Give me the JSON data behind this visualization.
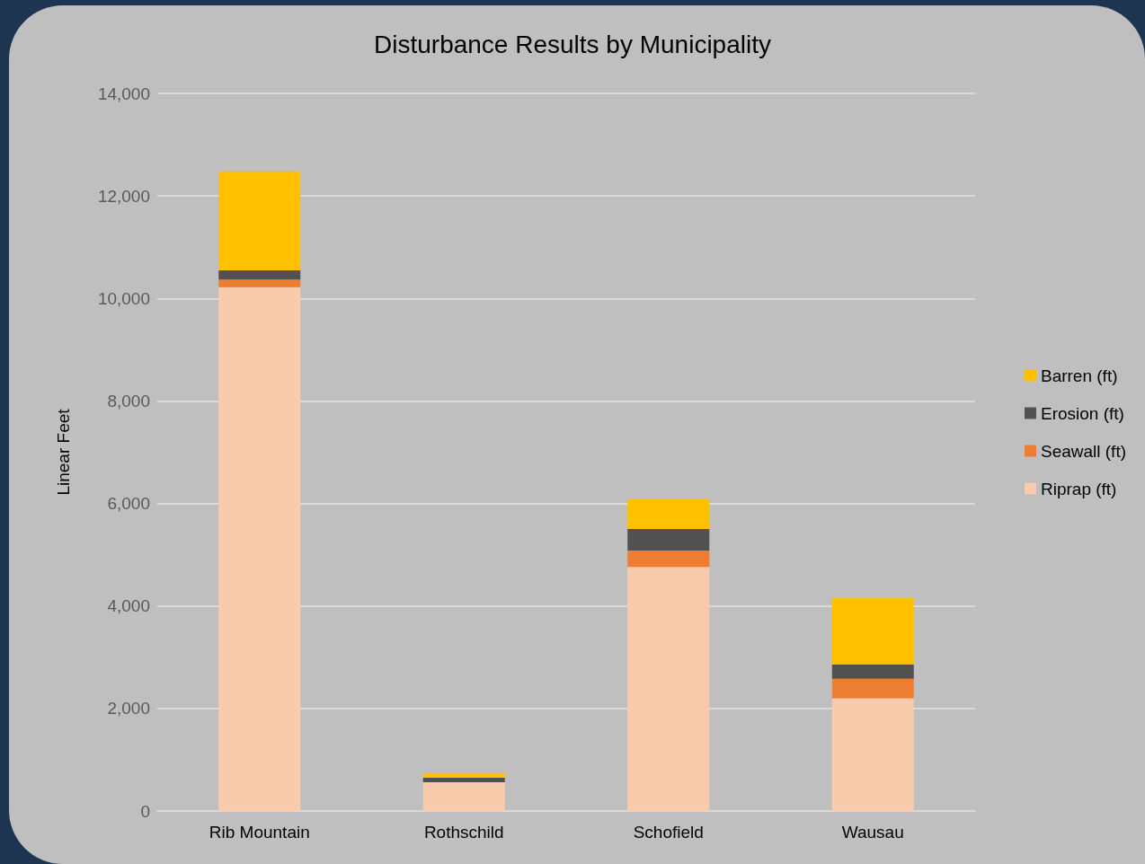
{
  "chart_data": {
    "type": "bar",
    "title": "Disturbance Results by Municipality",
    "ylabel": "Linear Feet",
    "categories": [
      "Rib Mountain",
      "Rothschild",
      "Schofield",
      "Wausau"
    ],
    "series": [
      {
        "name": "Riprap (ft)",
        "color": "#f8cbad",
        "values": [
          10220,
          560,
          4760,
          2200
        ]
      },
      {
        "name": "Seawall (ft)",
        "color": "#ed7d31",
        "values": [
          150,
          0,
          320,
          380
        ]
      },
      {
        "name": "Erosion (ft)",
        "color": "#525252",
        "values": [
          180,
          90,
          420,
          280
        ]
      },
      {
        "name": "Barren (ft)",
        "color": "#ffc000",
        "values": [
          1930,
          90,
          590,
          1300
        ]
      }
    ],
    "stacked": true,
    "ylim": [
      0,
      14000
    ],
    "yticks": [
      0,
      {
        "value": 2000,
        "label": "2,000"
      },
      {
        "value": 4000,
        "label": "4,000"
      },
      {
        "value": 6000,
        "label": "6,000"
      },
      {
        "value": 8000,
        "label": "8,000"
      },
      {
        "value": 10000,
        "label": "10,000"
      },
      {
        "value": 12000,
        "label": "12,000"
      },
      {
        "value": 14000,
        "label": "14,000"
      }
    ],
    "grid": "y",
    "legend": "right"
  }
}
